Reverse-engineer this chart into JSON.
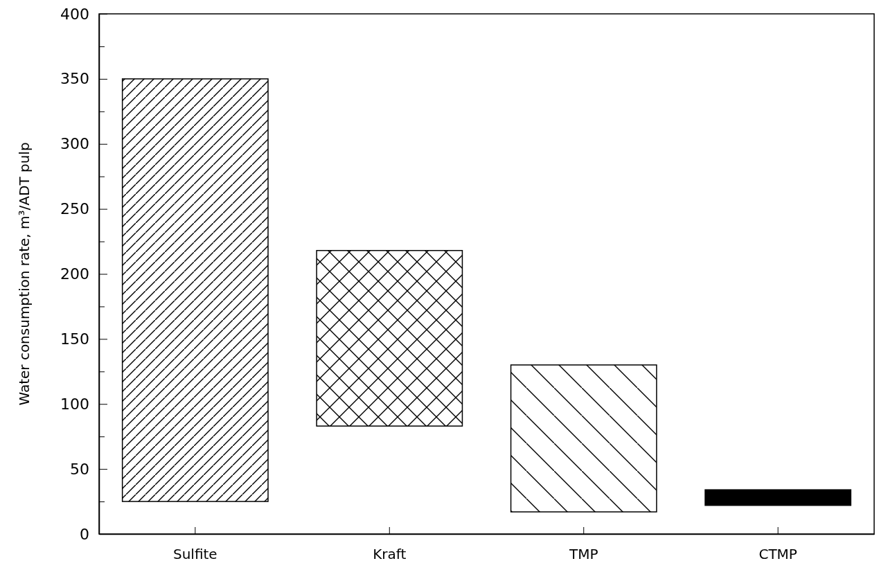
{
  "chart_data": {
    "type": "bar",
    "ylabel": "Water consumption rate,  m³/ADT pulp",
    "categories": [
      "Sulfite",
      "Kraft",
      "TMP",
      "CTMP"
    ],
    "base": [
      25,
      83,
      17,
      22
    ],
    "values": [
      325,
      135,
      113,
      12
    ],
    "colors": [
      "#000000",
      "#000000",
      "#000000",
      "#000000"
    ],
    "ylim": [
      0,
      400
    ],
    "yticks": [
      0,
      {
        "value": 25,
        "label": null
      },
      50,
      {
        "value": 75,
        "label": null
      },
      100,
      {
        "value": 125,
        "label": null
      },
      150,
      {
        "value": 175,
        "label": null
      },
      200,
      {
        "value": 225,
        "label": null
      },
      250,
      {
        "value": 275,
        "label": null
      },
      300,
      {
        "value": 325,
        "label": null
      },
      350,
      {
        "value": 375,
        "label": null
      },
      400
    ],
    "grid": false
  }
}
